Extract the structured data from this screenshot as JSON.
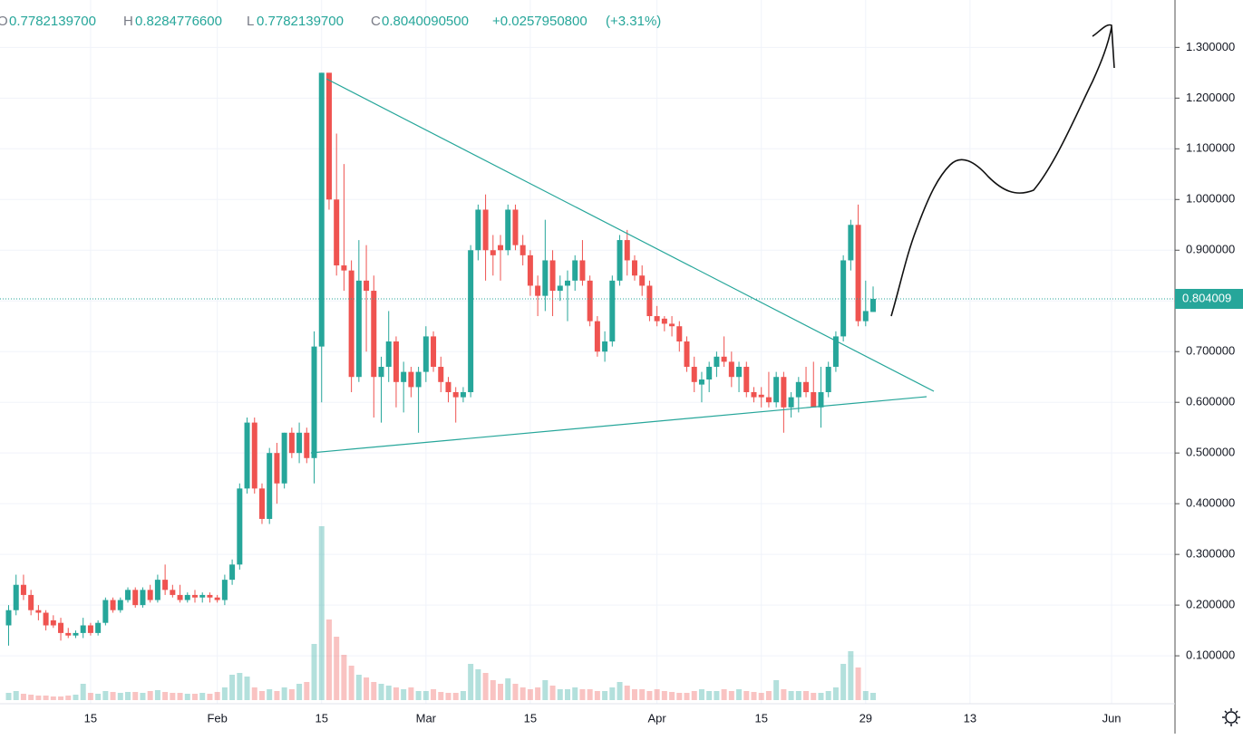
{
  "chart_data": {
    "type": "candlestick",
    "legend": [
      {
        "label": "O",
        "value": "0.7782139700"
      },
      {
        "label": "H",
        "value": "0.8284776600"
      },
      {
        "label": "L",
        "value": "0.7782139700"
      },
      {
        "label": "C",
        "value": "0.8040090500"
      }
    ],
    "change": "+0.0257950800",
    "change_pct": "(+3.31%)",
    "last_price": {
      "value": 0.804009,
      "label": "0.804009"
    },
    "up_color": "#26a69a",
    "down_color": "#ef5350",
    "grid": true,
    "ylim": [
      0.0055,
      1.3935
    ],
    "yticks": [
      {
        "value": 0.1,
        "label": "0.100000"
      },
      {
        "value": 0.2,
        "label": "0.200000"
      },
      {
        "value": 0.3,
        "label": "0.300000"
      },
      {
        "value": 0.4,
        "label": "0.400000"
      },
      {
        "value": 0.5,
        "label": "0.500000"
      },
      {
        "value": 0.6,
        "label": "0.600000"
      },
      {
        "value": 0.7,
        "label": "0.700000"
      },
      {
        "value": 0.8,
        "label": "0.800000"
      },
      {
        "value": 0.9,
        "label": "0.900000"
      },
      {
        "value": 1.0,
        "label": "1.000000"
      },
      {
        "value": 1.1,
        "label": "1.100000"
      },
      {
        "value": 1.2,
        "label": "1.200000"
      },
      {
        "value": 1.3,
        "label": "1.300000"
      }
    ],
    "categories": [
      null,
      null,
      null,
      null,
      null,
      null,
      null,
      null,
      null,
      null,
      null,
      "15",
      null,
      null,
      null,
      null,
      null,
      null,
      null,
      null,
      null,
      null,
      null,
      null,
      null,
      null,
      null,
      null,
      "Feb",
      null,
      null,
      null,
      null,
      null,
      null,
      null,
      null,
      null,
      null,
      null,
      null,
      null,
      "15",
      null,
      null,
      null,
      null,
      null,
      null,
      null,
      null,
      null,
      null,
      null,
      null,
      null,
      "Mar",
      null,
      null,
      null,
      null,
      null,
      null,
      null,
      null,
      null,
      null,
      null,
      null,
      null,
      "15",
      null,
      null,
      null,
      null,
      null,
      null,
      null,
      null,
      null,
      null,
      null,
      null,
      null,
      null,
      null,
      null,
      "Apr",
      null,
      null,
      null,
      null,
      null,
      null,
      null,
      null,
      null,
      null,
      null,
      null,
      null,
      "15",
      null,
      null,
      null,
      null,
      null,
      null,
      null,
      null,
      null,
      null,
      null,
      null,
      null,
      "29",
      null,
      null,
      null,
      null,
      null,
      null,
      null,
      null,
      null,
      null,
      null,
      null,
      null,
      "13",
      null,
      null,
      null,
      null,
      null,
      null,
      null,
      null,
      null,
      null,
      null,
      null,
      null,
      null,
      null,
      null,
      null,
      null,
      "Jun"
    ],
    "open": [
      0.16,
      0.19,
      0.24,
      0.22,
      0.19,
      0.185,
      0.17,
      0.165,
      0.145,
      0.14,
      0.145,
      0.16,
      0.145,
      0.165,
      0.21,
      0.19,
      0.21,
      0.23,
      0.2,
      0.23,
      0.21,
      0.25,
      0.23,
      0.22,
      0.21,
      0.22,
      0.215,
      0.22,
      0.215,
      0.21,
      0.25,
      0.28,
      0.43,
      0.56,
      0.43,
      0.37,
      0.5,
      0.44,
      0.54,
      0.5,
      0.54,
      0.49,
      0.71,
      1.25,
      1.0,
      0.87,
      0.86,
      0.65,
      0.84,
      0.82,
      0.65,
      0.67,
      0.72,
      0.64,
      0.66,
      0.63,
      0.66,
      0.73,
      0.67,
      0.64,
      0.62,
      0.61,
      0.62,
      0.9,
      0.98,
      0.9,
      0.91,
      0.9,
      0.98,
      0.91,
      0.89,
      0.83,
      0.81,
      0.88,
      0.82,
      0.83,
      0.84,
      0.88,
      0.84,
      0.76,
      0.7,
      0.72,
      0.84,
      0.92,
      0.88,
      0.85,
      0.83,
      0.77,
      0.765,
      0.755,
      0.75,
      0.72,
      0.67,
      0.635,
      0.645,
      0.67,
      0.69,
      0.68,
      0.65,
      0.67,
      0.62,
      0.615,
      0.61,
      0.6,
      0.65,
      0.59,
      0.61,
      0.64,
      0.62,
      0.59,
      0.62,
      0.67,
      0.73,
      0.88,
      0.95,
      0.76,
      0.77821397,
      null,
      null,
      null,
      null,
      null,
      null,
      null,
      null,
      null,
      null,
      null,
      null,
      null,
      null,
      null,
      null,
      null,
      null,
      null,
      null,
      null,
      null,
      null,
      null,
      null,
      null,
      null,
      null,
      null,
      null,
      null,
      null
    ],
    "high": [
      0.2,
      0.26,
      0.26,
      0.23,
      0.2,
      0.19,
      0.18,
      0.175,
      0.155,
      0.15,
      0.175,
      0.165,
      0.17,
      0.215,
      0.215,
      0.215,
      0.235,
      0.235,
      0.235,
      0.24,
      0.26,
      0.28,
      0.24,
      0.24,
      0.225,
      0.23,
      0.225,
      0.225,
      0.22,
      0.26,
      0.29,
      0.44,
      0.57,
      0.57,
      0.44,
      0.51,
      0.52,
      0.54,
      0.55,
      0.56,
      0.55,
      0.74,
      1.25,
      1.25,
      1.13,
      1.07,
      0.88,
      0.92,
      0.91,
      0.85,
      0.69,
      0.78,
      0.73,
      0.68,
      0.67,
      0.67,
      0.75,
      0.74,
      0.69,
      0.65,
      0.63,
      0.63,
      0.91,
      0.99,
      1.01,
      0.93,
      0.93,
      0.99,
      0.99,
      0.93,
      0.9,
      0.85,
      0.96,
      0.9,
      0.85,
      0.86,
      0.89,
      0.92,
      0.85,
      0.77,
      0.74,
      0.85,
      0.93,
      0.94,
      0.89,
      0.87,
      0.84,
      0.79,
      0.77,
      0.77,
      0.76,
      0.73,
      0.69,
      0.66,
      0.68,
      0.7,
      0.73,
      0.7,
      0.68,
      0.68,
      0.63,
      0.63,
      0.66,
      0.66,
      0.66,
      0.62,
      0.65,
      0.67,
      0.68,
      0.67,
      0.68,
      0.74,
      0.89,
      0.96,
      0.99,
      0.84,
      0.82847766,
      null,
      null,
      null,
      null,
      null,
      null,
      null,
      null,
      null,
      null,
      null,
      null,
      null,
      null,
      null,
      null,
      null,
      null,
      null,
      null,
      null,
      null,
      null,
      null,
      null,
      null,
      null,
      null,
      null,
      null,
      null,
      null
    ],
    "low": [
      0.12,
      0.18,
      0.21,
      0.18,
      0.17,
      0.15,
      0.155,
      0.13,
      0.135,
      0.135,
      0.135,
      0.14,
      0.14,
      0.16,
      0.185,
      0.185,
      0.205,
      0.195,
      0.195,
      0.205,
      0.205,
      0.22,
      0.215,
      0.205,
      0.205,
      0.205,
      0.205,
      0.205,
      0.205,
      0.2,
      0.24,
      0.27,
      0.42,
      0.42,
      0.36,
      0.36,
      0.4,
      0.43,
      0.49,
      0.48,
      0.48,
      0.44,
      0.6,
      0.98,
      0.85,
      0.82,
      0.62,
      0.64,
      0.7,
      0.57,
      0.56,
      0.64,
      0.59,
      0.58,
      0.61,
      0.54,
      0.64,
      0.66,
      0.62,
      0.6,
      0.56,
      0.6,
      0.61,
      0.88,
      0.84,
      0.85,
      0.84,
      0.89,
      0.9,
      0.87,
      0.81,
      0.77,
      0.78,
      0.77,
      0.8,
      0.76,
      0.82,
      0.83,
      0.75,
      0.69,
      0.68,
      0.71,
      0.83,
      0.85,
      0.84,
      0.81,
      0.76,
      0.75,
      0.74,
      0.73,
      0.7,
      0.66,
      0.62,
      0.6,
      0.62,
      0.65,
      0.67,
      0.63,
      0.62,
      0.61,
      0.6,
      0.59,
      0.59,
      0.59,
      0.54,
      0.57,
      0.58,
      0.61,
      0.59,
      0.55,
      0.61,
      0.66,
      0.72,
      0.86,
      0.75,
      0.75,
      0.77821397,
      null,
      null,
      null,
      null,
      null,
      null,
      null,
      null,
      null,
      null,
      null,
      null,
      null,
      null,
      null,
      null,
      null,
      null,
      null,
      null,
      null,
      null,
      null,
      null,
      null,
      null,
      null,
      null,
      null,
      null,
      null,
      null
    ],
    "close": [
      0.19,
      0.24,
      0.22,
      0.19,
      0.185,
      0.16,
      0.16,
      0.145,
      0.14,
      0.145,
      0.16,
      0.145,
      0.165,
      0.21,
      0.19,
      0.21,
      0.23,
      0.2,
      0.23,
      0.21,
      0.25,
      0.23,
      0.22,
      0.21,
      0.22,
      0.215,
      0.22,
      0.215,
      0.21,
      0.25,
      0.28,
      0.43,
      0.56,
      0.43,
      0.37,
      0.5,
      0.44,
      0.54,
      0.5,
      0.54,
      0.49,
      0.71,
      1.25,
      1.0,
      0.87,
      0.86,
      0.65,
      0.84,
      0.82,
      0.65,
      0.67,
      0.72,
      0.64,
      0.66,
      0.63,
      0.66,
      0.73,
      0.67,
      0.64,
      0.62,
      0.61,
      0.62,
      0.9,
      0.98,
      0.9,
      0.89,
      0.9,
      0.98,
      0.91,
      0.89,
      0.83,
      0.81,
      0.88,
      0.82,
      0.83,
      0.84,
      0.88,
      0.84,
      0.76,
      0.7,
      0.72,
      0.84,
      0.92,
      0.88,
      0.85,
      0.83,
      0.77,
      0.76,
      0.755,
      0.75,
      0.72,
      0.67,
      0.64,
      0.645,
      0.67,
      0.69,
      0.68,
      0.65,
      0.67,
      0.62,
      0.61,
      0.61,
      0.6,
      0.65,
      0.59,
      0.61,
      0.64,
      0.62,
      0.59,
      0.62,
      0.67,
      0.73,
      0.88,
      0.95,
      0.76,
      0.78,
      0.80400905,
      null,
      null,
      null,
      null,
      null,
      null,
      null,
      null,
      null,
      null,
      null,
      null,
      null,
      null,
      null,
      null,
      null,
      null,
      null,
      null,
      null,
      null,
      null,
      null,
      null,
      null,
      null,
      null,
      null,
      null,
      null,
      null
    ],
    "volume": [
      8,
      10,
      7,
      6,
      5,
      5,
      4,
      4,
      5,
      6,
      18,
      8,
      7,
      10,
      9,
      8,
      9,
      9,
      8,
      10,
      11,
      9,
      8,
      8,
      7,
      7,
      8,
      7,
      9,
      14,
      28,
      30,
      26,
      14,
      10,
      12,
      10,
      14,
      12,
      18,
      20,
      62,
      192,
      89,
      70,
      50,
      38,
      28,
      25,
      20,
      18,
      16,
      14,
      12,
      14,
      10,
      10,
      12,
      9,
      8,
      8,
      10,
      40,
      34,
      30,
      22,
      18,
      24,
      18,
      14,
      12,
      14,
      22,
      16,
      12,
      12,
      14,
      12,
      12,
      10,
      10,
      14,
      20,
      16,
      12,
      12,
      10,
      12,
      10,
      9,
      8,
      8,
      10,
      12,
      10,
      10,
      12,
      10,
      12,
      10,
      9,
      8,
      10,
      22,
      12,
      10,
      10,
      10,
      8,
      8,
      10,
      14,
      40,
      54,
      36,
      10,
      8,
      null,
      null,
      null,
      null,
      null,
      null,
      null,
      null,
      null,
      null,
      null,
      null,
      null,
      null,
      null,
      null,
      null,
      null,
      null,
      null,
      null,
      null,
      null,
      null,
      null,
      null,
      null,
      null,
      null,
      null,
      null,
      null
    ]
  }
}
